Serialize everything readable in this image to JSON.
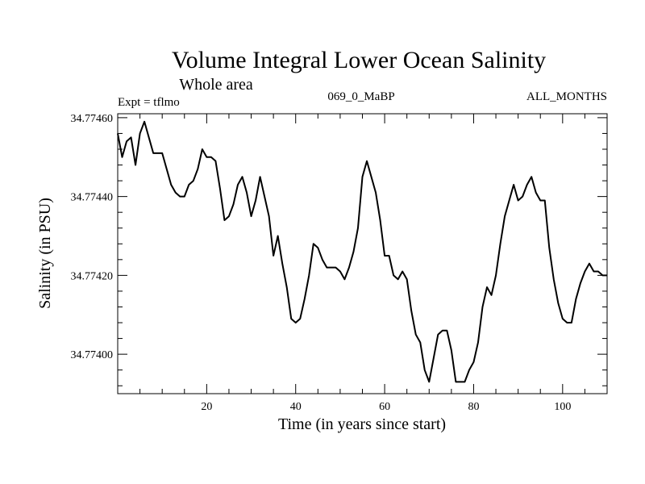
{
  "chart_data": {
    "type": "line",
    "title": "Volume Integral Lower Ocean Salinity",
    "subtitle": "Whole area",
    "header_left": "Expt = tflmo",
    "header_center": "069_0_MaBP",
    "header_right": "ALL_MONTHS",
    "xlabel": "Time (in years since start)",
    "ylabel": "Salinity (in PSU)",
    "xlim": [
      0,
      110
    ],
    "ylim": [
      34.7739,
      34.77461
    ],
    "x_major_ticks": [
      20,
      40,
      60,
      80,
      100
    ],
    "x_tick_labels": [
      "20",
      "40",
      "60",
      "80",
      "100"
    ],
    "y_major_ticks": [
      34.774,
      34.7742,
      34.7744,
      34.7746
    ],
    "y_tick_labels": [
      "34.77400",
      "34.77420",
      "34.77440",
      "34.77460"
    ],
    "grid": false,
    "series": [
      {
        "name": "salinity",
        "x": [
          0,
          1,
          2,
          3,
          4,
          5,
          6,
          7,
          8,
          9,
          10,
          11,
          12,
          13,
          14,
          15,
          16,
          17,
          18,
          19,
          20,
          21,
          22,
          23,
          24,
          25,
          26,
          27,
          28,
          29,
          30,
          31,
          32,
          33,
          34,
          35,
          36,
          37,
          38,
          39,
          40,
          41,
          42,
          43,
          44,
          45,
          46,
          47,
          48,
          49,
          50,
          51,
          52,
          53,
          54,
          55,
          56,
          57,
          58,
          59,
          60,
          61,
          62,
          63,
          64,
          65,
          66,
          67,
          68,
          69,
          70,
          71,
          72,
          73,
          74,
          75,
          76,
          77,
          78,
          79,
          80,
          81,
          82,
          83,
          84,
          85,
          86,
          87,
          88,
          89,
          90,
          91,
          92,
          93,
          94,
          95,
          96,
          97,
          98,
          99,
          100,
          101,
          102,
          103,
          104,
          105,
          106,
          107,
          108,
          109,
          110
        ],
        "values": [
          34.77456,
          34.7745,
          34.77454,
          34.77455,
          34.77448,
          34.77456,
          34.77459,
          34.77455,
          34.77451,
          34.77451,
          34.77451,
          34.77447,
          34.77443,
          34.77441,
          34.7744,
          34.7744,
          34.77443,
          34.77444,
          34.77447,
          34.77452,
          34.7745,
          34.7745,
          34.77449,
          34.77442,
          34.77434,
          34.77435,
          34.77438,
          34.77443,
          34.77445,
          34.77441,
          34.77435,
          34.77439,
          34.77445,
          34.7744,
          34.77435,
          34.77425,
          34.7743,
          34.77423,
          34.77417,
          34.77409,
          34.77408,
          34.77409,
          34.77414,
          34.7742,
          34.77428,
          34.77427,
          34.77424,
          34.77422,
          34.77422,
          34.77422,
          34.77421,
          34.77419,
          34.77422,
          34.77426,
          34.77432,
          34.77445,
          34.77449,
          34.77445,
          34.77441,
          34.77434,
          34.77425,
          34.77425,
          34.7742,
          34.77419,
          34.77421,
          34.77419,
          34.77411,
          34.77405,
          34.77403,
          34.77396,
          34.77393,
          34.77399,
          34.77405,
          34.77406,
          34.77406,
          34.77401,
          34.77393,
          34.77393,
          34.77393,
          34.77396,
          34.77398,
          34.77403,
          34.77412,
          34.77417,
          34.77415,
          34.7742,
          34.77428,
          34.77435,
          34.77439,
          34.77443,
          34.77439,
          34.7744,
          34.77443,
          34.77445,
          34.77441,
          34.77439,
          34.77439,
          34.77427,
          34.77419,
          34.77413,
          34.77409,
          34.77408,
          34.77408,
          34.77414,
          34.77418,
          34.77421,
          34.77423,
          34.77421,
          34.77421,
          34.7742,
          34.7742
        ]
      }
    ]
  }
}
